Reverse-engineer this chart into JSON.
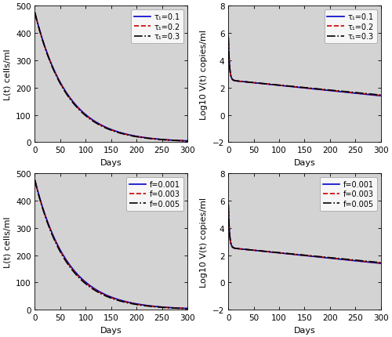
{
  "t_max": 300,
  "t_points": 3000,
  "L_init": 475,
  "V_log_init": 5.7,
  "L_decay_rate": 0.0155,
  "L_decay_rates_tau": [
    0.0155,
    0.0157,
    0.0159
  ],
  "L_decay_rates_f": [
    0.0155,
    0.0158,
    0.0161
  ],
  "V_fast_rate": 0.45,
  "V_break_val": 2.55,
  "V_slow_rate": 0.00385,
  "V_slow_rates_tau": [
    0.00385,
    0.00375,
    0.00365
  ],
  "V_slow_rates_f": [
    0.00385,
    0.00375,
    0.00365
  ],
  "tau_labels": [
    "τ₁=0.1",
    "τ₁=0.2",
    "τ₁=0.3"
  ],
  "f_labels": [
    "f=0.001",
    "f=0.003",
    "f=0.005"
  ],
  "colors": [
    "#0000cc",
    "#cc0000",
    "#000000"
  ],
  "linestyles_tau": [
    "-",
    "--",
    "-."
  ],
  "linestyles_f": [
    "-",
    "--",
    "-."
  ],
  "linewidths": [
    1.2,
    1.2,
    1.2
  ],
  "xlim": [
    0,
    300
  ],
  "ylim_L": [
    0,
    500
  ],
  "ylim_V": [
    -2,
    8
  ],
  "xlabel": "Days",
  "ylabel_L": "L(t) cells/ml",
  "ylabel_V": "Log10 V(t) copies/ml",
  "xticks": [
    0,
    50,
    100,
    150,
    200,
    250,
    300
  ],
  "yticks_L": [
    0,
    100,
    200,
    300,
    400,
    500
  ],
  "yticks_V": [
    -2,
    0,
    2,
    4,
    6,
    8
  ],
  "bg_color": "#d3d3d3"
}
